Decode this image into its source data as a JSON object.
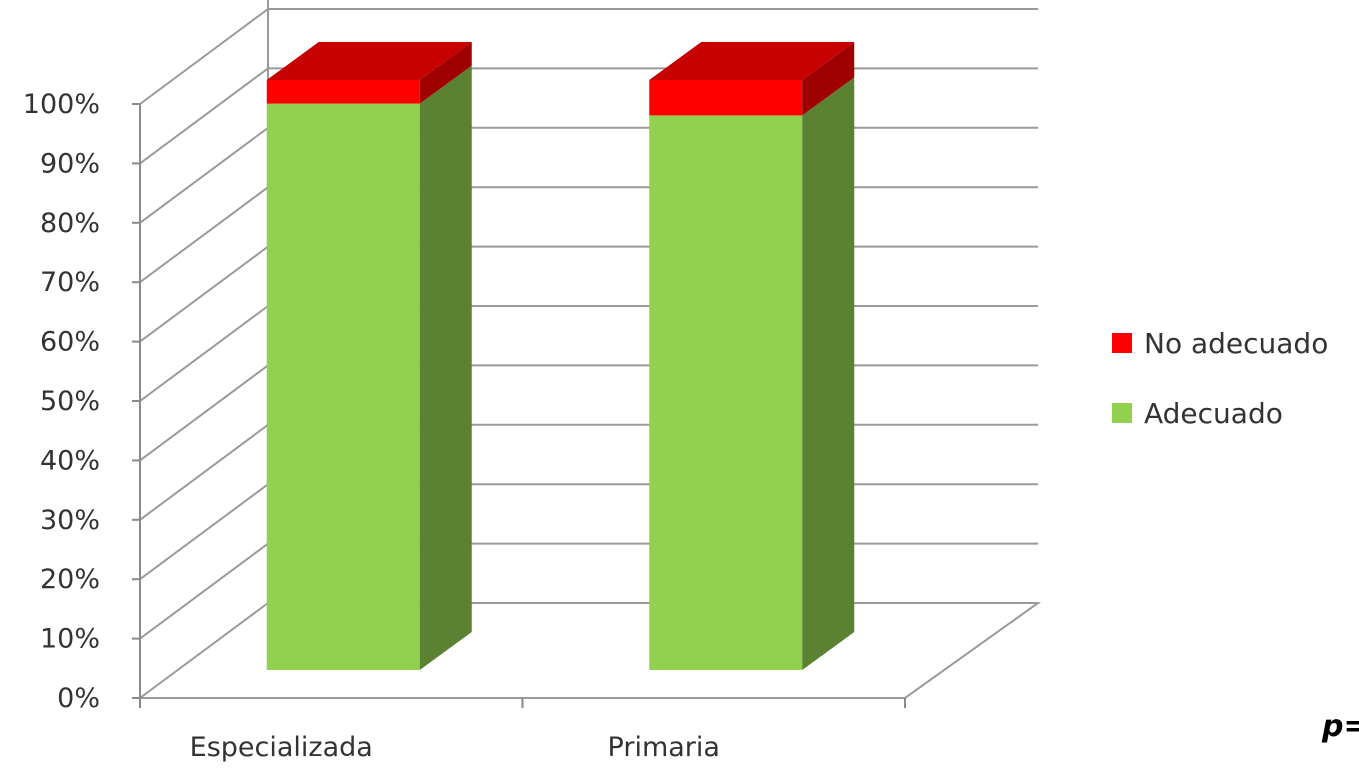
{
  "chart_data": {
    "type": "bar",
    "stacked": true,
    "three_d": true,
    "categories": [
      "Especializada",
      "Primaria"
    ],
    "series": [
      {
        "name": "Adecuado",
        "values": [
          96,
          94
        ],
        "color": "#92D050"
      },
      {
        "name": "No adecuado",
        "values": [
          4,
          6
        ],
        "color": "#FF0000"
      }
    ],
    "ylim": [
      0,
      100
    ],
    "y_ticks": [
      "0%",
      "10%",
      "20%",
      "30%",
      "40%",
      "50%",
      "60%",
      "70%",
      "80%",
      "90%",
      "100%"
    ],
    "grid": true,
    "legend_position": "right",
    "legend_order": [
      "No adecuado",
      "Adecuado"
    ],
    "annotation": "p="
  }
}
